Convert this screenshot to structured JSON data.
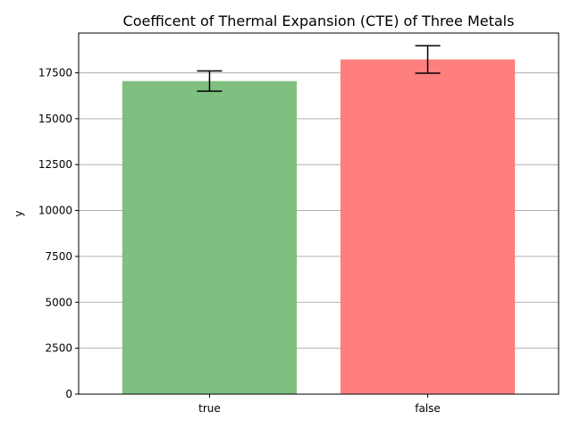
{
  "chart_data": {
    "type": "bar",
    "title": "Coefficent of Thermal Expansion (CTE) of Three Metals",
    "xlabel": "",
    "ylabel": "y",
    "categories": [
      "true",
      "false"
    ],
    "values": [
      17050,
      18230
    ],
    "errors": [
      550,
      750
    ],
    "colors": [
      "#7fbf7f",
      "#ff7f7f"
    ],
    "ylim": [
      0,
      19665
    ],
    "yticks": [
      0,
      2500,
      5000,
      7500,
      10000,
      12500,
      15000,
      17500
    ],
    "ytick_labels": [
      "0",
      "2500",
      "5000",
      "7500",
      "10000",
      "12500",
      "15000",
      "17500"
    ],
    "grid": "horizontal",
    "legend": "none"
  }
}
